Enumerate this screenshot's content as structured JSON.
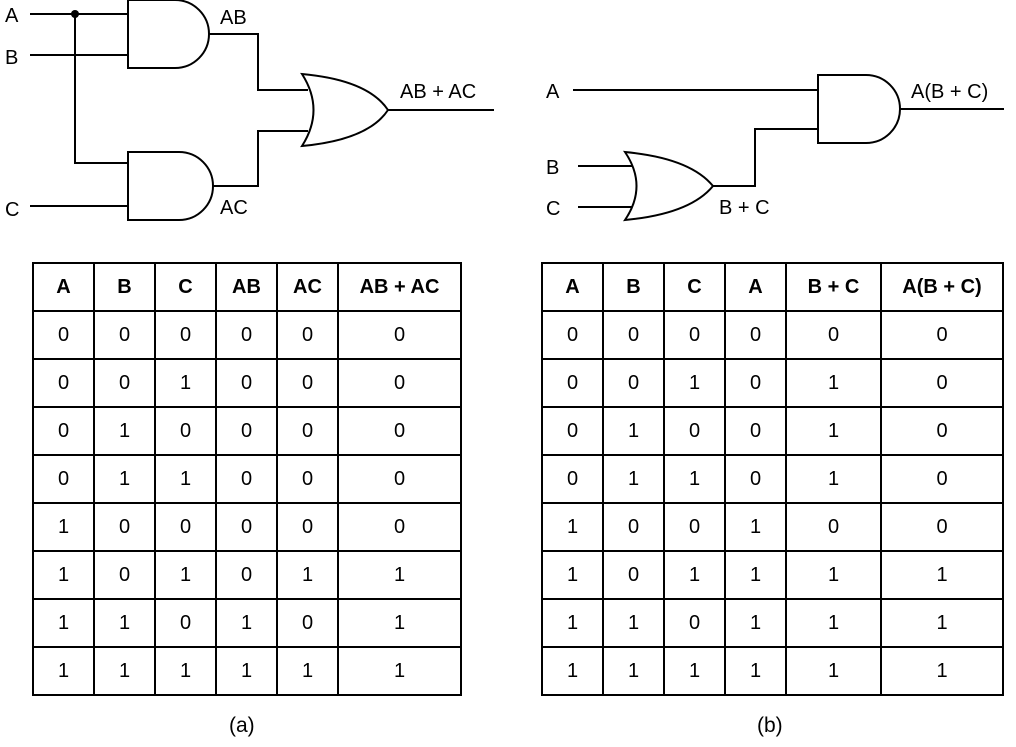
{
  "diagram_a": {
    "inputs": [
      "A",
      "B",
      "C"
    ],
    "and_gate_top_output": "AB",
    "and_gate_bottom_output": "AC",
    "or_gate_output": "AB + AC"
  },
  "diagram_b": {
    "inputs": [
      "A",
      "B",
      "C"
    ],
    "or_gate_output": "B + C",
    "and_gate_output": "A(B + C)"
  },
  "table_a": {
    "headers": [
      "A",
      "B",
      "C",
      "AB",
      "AC",
      "AB + AC"
    ],
    "rows": [
      [
        "0",
        "0",
        "0",
        "0",
        "0",
        "0"
      ],
      [
        "0",
        "0",
        "1",
        "0",
        "0",
        "0"
      ],
      [
        "0",
        "1",
        "0",
        "0",
        "0",
        "0"
      ],
      [
        "0",
        "1",
        "1",
        "0",
        "0",
        "0"
      ],
      [
        "1",
        "0",
        "0",
        "0",
        "0",
        "0"
      ],
      [
        "1",
        "0",
        "1",
        "0",
        "1",
        "1"
      ],
      [
        "1",
        "1",
        "0",
        "1",
        "0",
        "1"
      ],
      [
        "1",
        "1",
        "1",
        "1",
        "1",
        "1"
      ]
    ]
  },
  "table_b": {
    "headers": [
      "A",
      "B",
      "C",
      "A",
      "B + C",
      "A(B + C)"
    ],
    "rows": [
      [
        "0",
        "0",
        "0",
        "0",
        "0",
        "0"
      ],
      [
        "0",
        "0",
        "1",
        "0",
        "1",
        "0"
      ],
      [
        "0",
        "1",
        "0",
        "0",
        "1",
        "0"
      ],
      [
        "0",
        "1",
        "1",
        "0",
        "1",
        "0"
      ],
      [
        "1",
        "0",
        "0",
        "1",
        "0",
        "0"
      ],
      [
        "1",
        "0",
        "1",
        "1",
        "1",
        "1"
      ],
      [
        "1",
        "1",
        "0",
        "1",
        "1",
        "1"
      ],
      [
        "1",
        "1",
        "1",
        "1",
        "1",
        "1"
      ]
    ]
  },
  "captions": {
    "a": "(a)",
    "b": "(b)"
  }
}
